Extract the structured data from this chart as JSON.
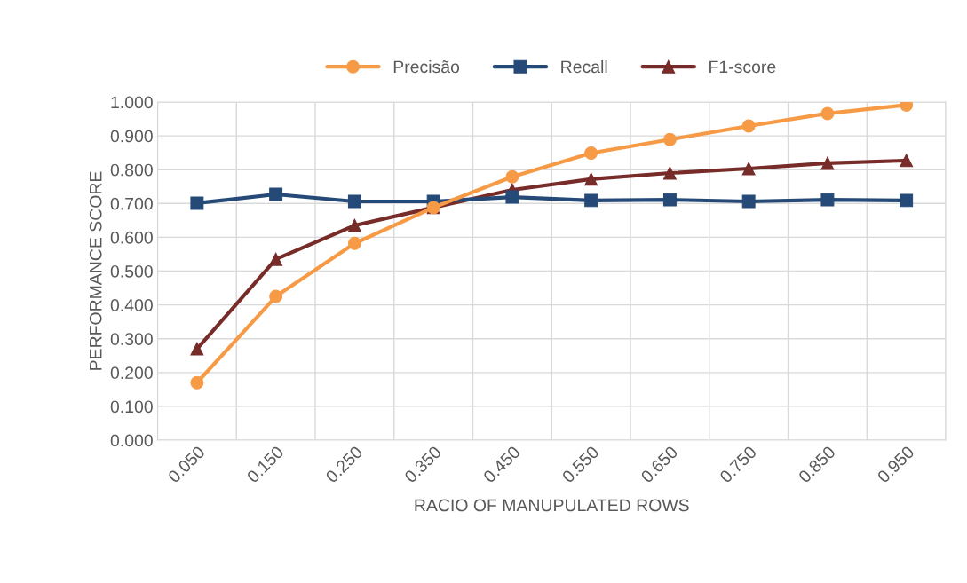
{
  "chart_data": {
    "type": "line",
    "xlabel": "RACIO OF MANUPULATED ROWS",
    "ylabel": "PERFORMANCE SCORE",
    "categories": [
      "0.050",
      "0.150",
      "0.250",
      "0.350",
      "0.450",
      "0.550",
      "0.650",
      "0.750",
      "0.850",
      "0.950"
    ],
    "series": [
      {
        "name": "Precisão",
        "color": "#f79a46",
        "marker": "circle",
        "values": [
          0.17,
          0.425,
          0.582,
          0.688,
          0.779,
          0.849,
          0.889,
          0.929,
          0.966,
          0.991
        ]
      },
      {
        "name": "Recall",
        "color": "#264a78",
        "marker": "square",
        "values": [
          0.701,
          0.727,
          0.706,
          0.706,
          0.719,
          0.709,
          0.711,
          0.706,
          0.711,
          0.709
        ]
      },
      {
        "name": "F1-score",
        "color": "#772c2a",
        "marker": "triangle",
        "values": [
          0.27,
          0.535,
          0.635,
          0.688,
          0.74,
          0.772,
          0.79,
          0.803,
          0.819,
          0.827
        ]
      }
    ],
    "ylim": [
      0,
      1.0
    ],
    "yticks": [
      {
        "value": 0,
        "label": "0.000"
      },
      {
        "value": 0.1,
        "label": "0.100"
      },
      {
        "value": 0.2,
        "label": "0.200"
      },
      {
        "value": 0.3,
        "label": "0.300"
      },
      {
        "value": 0.4,
        "label": "0.400"
      },
      {
        "value": 0.5,
        "label": "0.500"
      },
      {
        "value": 0.6,
        "label": "0.600"
      },
      {
        "value": 0.7,
        "label": "0.700"
      },
      {
        "value": 0.8,
        "label": "0.800"
      },
      {
        "value": 0.9,
        "label": "0.900"
      },
      {
        "value": 1.0,
        "label": "1.000"
      }
    ],
    "grid": true,
    "legend": "top",
    "line_style": "solid"
  }
}
